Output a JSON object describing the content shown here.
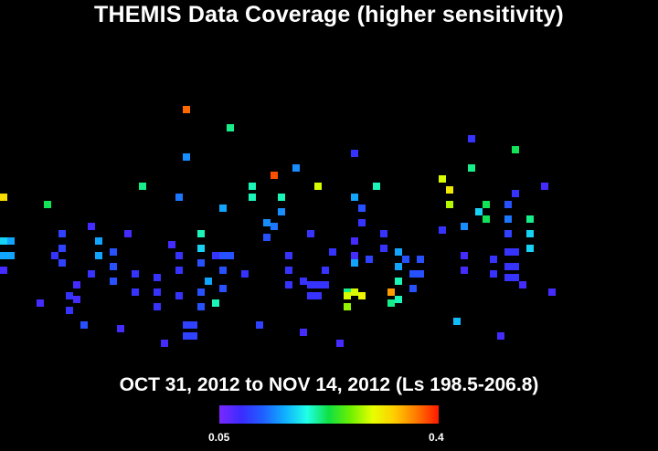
{
  "chart_data": {
    "type": "heatmap",
    "title": "THEMIS Data Coverage (higher sensitivity)",
    "subtitle": "OCT 31, 2012 to NOV 14, 2012 (Ls 198.5-206.8)",
    "colorbar": {
      "min_label": "0.05",
      "max_label": "0.4",
      "range": [
        0.05,
        0.4
      ],
      "colors": [
        "#7a28ff",
        "#3b2bff",
        "#1f60ff",
        "#10b0ff",
        "#20ffe8",
        "#10e040",
        "#70f000",
        "#e8ff00",
        "#ffcc00",
        "#ff7800",
        "#ff1800"
      ]
    },
    "cells": [
      [
        0,
        72,
        0.32
      ],
      [
        0,
        84,
        0.17
      ],
      [
        0,
        88,
        0.15
      ],
      [
        0,
        92,
        0.08
      ],
      [
        1,
        84,
        0.15
      ],
      [
        1,
        88,
        0.15
      ],
      [
        5,
        101,
        0.08
      ],
      [
        6,
        74,
        0.22
      ],
      [
        7,
        88,
        0.09
      ],
      [
        8,
        82,
        0.1
      ],
      [
        8,
        86,
        0.1
      ],
      [
        8,
        90,
        0.1
      ],
      [
        9,
        99,
        0.09
      ],
      [
        9,
        103,
        0.09
      ],
      [
        10,
        96,
        0.08
      ],
      [
        10,
        100,
        0.08
      ],
      [
        11,
        107,
        0.11
      ],
      [
        12,
        80,
        0.08
      ],
      [
        12,
        93,
        0.09
      ],
      [
        13,
        84,
        0.15
      ],
      [
        13,
        88,
        0.15
      ],
      [
        15,
        87,
        0.11
      ],
      [
        15,
        91,
        0.11
      ],
      [
        15,
        95,
        0.11
      ],
      [
        16,
        108,
        0.08
      ],
      [
        17,
        82,
        0.08
      ],
      [
        18,
        93,
        0.09
      ],
      [
        18,
        98,
        0.09
      ],
      [
        19,
        69,
        0.21
      ],
      [
        21,
        94,
        0.09
      ],
      [
        21,
        98,
        0.09
      ],
      [
        21,
        102,
        0.09
      ],
      [
        22,
        112,
        0.08
      ],
      [
        23,
        85,
        0.08
      ],
      [
        24,
        72,
        0.13
      ],
      [
        24,
        99,
        0.09
      ],
      [
        24,
        88,
        0.09
      ],
      [
        24,
        92,
        0.09
      ],
      [
        25,
        61,
        0.14
      ],
      [
        25,
        48,
        0.37
      ],
      [
        25,
        107,
        0.1
      ],
      [
        25,
        110,
        0.1
      ],
      [
        26,
        107,
        0.1
      ],
      [
        26,
        110,
        0.1
      ],
      [
        27,
        82,
        0.2
      ],
      [
        27,
        86,
        0.17
      ],
      [
        27,
        90,
        0.11
      ],
      [
        27,
        98,
        0.11
      ],
      [
        27,
        102,
        0.11
      ],
      [
        28,
        95,
        0.15
      ],
      [
        29,
        88,
        0.09
      ],
      [
        29,
        101,
        0.2
      ],
      [
        30,
        75,
        0.15
      ],
      [
        30,
        88,
        0.11
      ],
      [
        30,
        92,
        0.11
      ],
      [
        30,
        97,
        0.11
      ],
      [
        31,
        88,
        0.11
      ],
      [
        31,
        53,
        0.21
      ],
      [
        33,
        93,
        0.09
      ],
      [
        34,
        69,
        0.2
      ],
      [
        34,
        72,
        0.2
      ],
      [
        35,
        107,
        0.1
      ],
      [
        36,
        79,
        0.14
      ],
      [
        36,
        83,
        0.11
      ],
      [
        37,
        66,
        0.38
      ],
      [
        37,
        80,
        0.13
      ],
      [
        38,
        72,
        0.2
      ],
      [
        38,
        76,
        0.14
      ],
      [
        39,
        88,
        0.09
      ],
      [
        39,
        92,
        0.09
      ],
      [
        39,
        96,
        0.09
      ],
      [
        40,
        64,
        0.14
      ],
      [
        41,
        109,
        0.08
      ],
      [
        41,
        95,
        0.09
      ],
      [
        42,
        82,
        0.09
      ],
      [
        42,
        96,
        0.09
      ],
      [
        42,
        99,
        0.09
      ],
      [
        43,
        69,
        0.29
      ],
      [
        43,
        96,
        0.09
      ],
      [
        43,
        99,
        0.09
      ],
      [
        44,
        96,
        0.09
      ],
      [
        44,
        92,
        0.09
      ],
      [
        45,
        87,
        0.09
      ],
      [
        46,
        112,
        0.08
      ],
      [
        47,
        98,
        0.21
      ],
      [
        47,
        102,
        0.27
      ],
      [
        47,
        99,
        0.29
      ],
      [
        48,
        84,
        0.08
      ],
      [
        48,
        60,
        0.09
      ],
      [
        48,
        88,
        0.08
      ],
      [
        48,
        72,
        0.15
      ],
      [
        48,
        90,
        0.15
      ],
      [
        48,
        98,
        0.29
      ],
      [
        49,
        79,
        0.09
      ],
      [
        49,
        75,
        0.11
      ],
      [
        49,
        99,
        0.3
      ],
      [
        50,
        89,
        0.1
      ],
      [
        51,
        69,
        0.2
      ],
      [
        52,
        82,
        0.09
      ],
      [
        52,
        86,
        0.09
      ],
      [
        53,
        98,
        0.35
      ],
      [
        53,
        101,
        0.21
      ],
      [
        54,
        87,
        0.15
      ],
      [
        54,
        91,
        0.15
      ],
      [
        54,
        95,
        0.2
      ],
      [
        54,
        100,
        0.2
      ],
      [
        55,
        89,
        0.11
      ],
      [
        56,
        93,
        0.11
      ],
      [
        56,
        97,
        0.11
      ],
      [
        57,
        93,
        0.11
      ],
      [
        57,
        89,
        0.11
      ],
      [
        60,
        81,
        0.09
      ],
      [
        60,
        67,
        0.29
      ],
      [
        61,
        70,
        0.31
      ],
      [
        61,
        74,
        0.28
      ],
      [
        62,
        106,
        0.16
      ],
      [
        63,
        80,
        0.14
      ],
      [
        63,
        88,
        0.08
      ],
      [
        63,
        92,
        0.08
      ],
      [
        64,
        56,
        0.09
      ],
      [
        64,
        64,
        0.21
      ],
      [
        65,
        76,
        0.17
      ],
      [
        66,
        74,
        0.22
      ],
      [
        66,
        78,
        0.22
      ],
      [
        67,
        89,
        0.09
      ],
      [
        67,
        93,
        0.09
      ],
      [
        68,
        110,
        0.08
      ],
      [
        69,
        74,
        0.11
      ],
      [
        69,
        78,
        0.13
      ],
      [
        69,
        82,
        0.1
      ],
      [
        69,
        87,
        0.09
      ],
      [
        69,
        91,
        0.09
      ],
      [
        69,
        94,
        0.09
      ],
      [
        70,
        59,
        0.22
      ],
      [
        70,
        71,
        0.09
      ],
      [
        70,
        87,
        0.09
      ],
      [
        70,
        91,
        0.09
      ],
      [
        70,
        94,
        0.09
      ],
      [
        71,
        96,
        0.08
      ],
      [
        72,
        78,
        0.21
      ],
      [
        72,
        82,
        0.17
      ],
      [
        72,
        86,
        0.17
      ],
      [
        74,
        69,
        0.08
      ],
      [
        75,
        98,
        0.08
      ]
    ]
  }
}
